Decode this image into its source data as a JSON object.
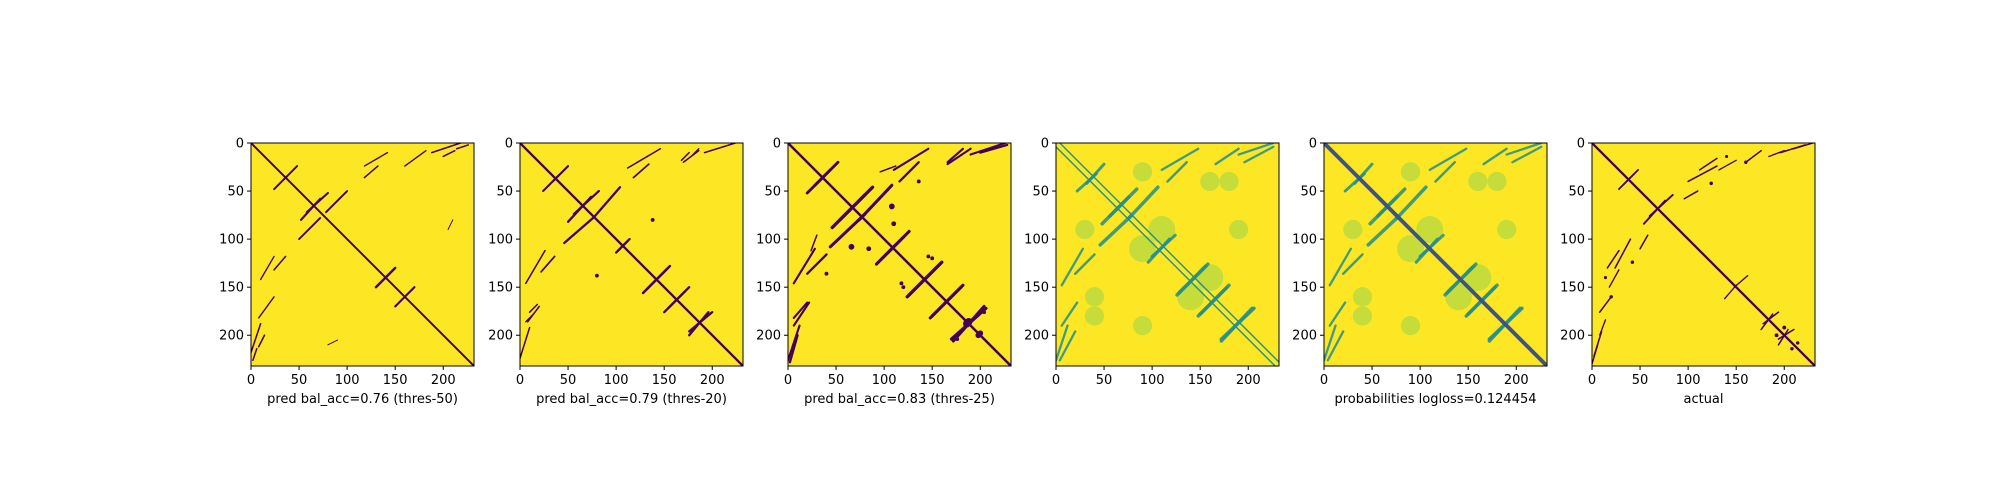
{
  "figure": {
    "background": "#ffffff",
    "colormap": [
      "#440154",
      "#3b528b",
      "#21908d",
      "#5dc963",
      "#fde725"
    ]
  },
  "chart_data": [
    {
      "type": "heatmap",
      "xlabel": "pred bal_acc=0.76 (thres-50)",
      "xticks": [
        0,
        50,
        100,
        150,
        200
      ],
      "yticks": [
        0,
        50,
        100,
        150,
        200
      ],
      "xlim": [
        0,
        232
      ],
      "ylim": [
        232,
        0
      ],
      "binary": true,
      "colors": [
        "#fde725",
        "#440154"
      ],
      "diagonal_width": 2,
      "contact_bands": [
        {
          "x": [
            24,
            38
          ],
          "y": [
            48,
            34
          ],
          "w": 2
        },
        {
          "x": [
            58,
            80
          ],
          "y": [
            72,
            52
          ],
          "w": 2.2
        },
        {
          "x": [
            50,
            72
          ],
          "y": [
            100,
            78
          ],
          "w": 2
        },
        {
          "x": [
            24,
            36
          ],
          "y": [
            132,
            118
          ],
          "w": 1.6
        },
        {
          "x": [
            118,
            142
          ],
          "y": [
            24,
            10
          ],
          "w": 1.4
        },
        {
          "x": [
            160,
            182
          ],
          "y": [
            24,
            8
          ],
          "w": 1.4
        },
        {
          "x": [
            188,
            218
          ],
          "y": [
            10,
            0
          ],
          "w": 1.6
        },
        {
          "x": [
            130,
            150
          ],
          "y": [
            150,
            130
          ],
          "w": 2.4
        },
        {
          "x": [
            150,
            170
          ],
          "y": [
            170,
            150
          ],
          "w": 2
        },
        {
          "x": [
            8,
            14
          ],
          "y": [
            212,
            200
          ],
          "w": 1.6
        },
        {
          "x": [
            2,
            6
          ],
          "y": [
            226,
            214
          ],
          "w": 1.6
        },
        {
          "x": [
            80,
            90
          ],
          "y": [
            210,
            205
          ],
          "w": 1
        }
      ],
      "blobs": []
    },
    {
      "type": "heatmap",
      "xlabel": "pred bal_acc=0.79 (thres-20)",
      "xticks": [
        0,
        50,
        100,
        150,
        200
      ],
      "yticks": [
        0,
        50,
        100,
        150,
        200
      ],
      "xlim": [
        0,
        232
      ],
      "ylim": [
        232,
        0
      ],
      "binary": true,
      "colors": [
        "#fde725",
        "#440154"
      ],
      "diagonal_width": 2.4,
      "contact_bands": [
        {
          "x": [
            24,
            40
          ],
          "y": [
            50,
            34
          ],
          "w": 2.2
        },
        {
          "x": [
            56,
            82
          ],
          "y": [
            74,
            50
          ],
          "w": 2.4
        },
        {
          "x": [
            46,
            76
          ],
          "y": [
            104,
            78
          ],
          "w": 2.4
        },
        {
          "x": [
            22,
            36
          ],
          "y": [
            134,
            118
          ],
          "w": 1.8
        },
        {
          "x": [
            100,
            112
          ],
          "y": [
            114,
            102
          ],
          "w": 2.4
        },
        {
          "x": [
            112,
            146
          ],
          "y": [
            26,
            6
          ],
          "w": 1.6
        },
        {
          "x": [
            170,
            186
          ],
          "y": [
            20,
            8
          ],
          "w": 1.6
        },
        {
          "x": [
            192,
            224
          ],
          "y": [
            10,
            0
          ],
          "w": 1.6
        },
        {
          "x": [
            132,
            156
          ],
          "y": [
            152,
            128
          ],
          "w": 2.6
        },
        {
          "x": [
            154,
            176
          ],
          "y": [
            172,
            150
          ],
          "w": 2.4
        },
        {
          "x": [
            176,
            200
          ],
          "y": [
            196,
            176
          ],
          "w": 2.4
        },
        {
          "x": [
            10,
            18
          ],
          "y": [
            176,
            168
          ],
          "w": 1.6
        },
        {
          "x": [
            6,
            14
          ],
          "y": [
            186,
            178
          ],
          "w": 1.4
        }
      ],
      "blobs": [
        {
          "cx": 80,
          "cy": 138,
          "r": 2
        }
      ]
    },
    {
      "type": "heatmap",
      "xlabel": "pred bal_acc=0.83 (thres-25)",
      "xticks": [
        0,
        50,
        100,
        150,
        200
      ],
      "yticks": [
        0,
        50,
        100,
        150,
        200
      ],
      "xlim": [
        0,
        232
      ],
      "ylim": [
        232,
        0
      ],
      "binary": true,
      "colors": [
        "#fde725",
        "#440154"
      ],
      "diagonal_width": 2.6,
      "contact_bands": [
        {
          "x": [
            20,
            44
          ],
          "y": [
            52,
            28
          ],
          "w": 3
        },
        {
          "x": [
            54,
            88
          ],
          "y": [
            80,
            46
          ],
          "w": 3.4
        },
        {
          "x": [
            44,
            80
          ],
          "y": [
            108,
            74
          ],
          "w": 3.2
        },
        {
          "x": [
            20,
            40
          ],
          "y": [
            136,
            116
          ],
          "w": 2.4
        },
        {
          "x": [
            92,
            120
          ],
          "y": [
            126,
            98
          ],
          "w": 3.2
        },
        {
          "x": [
            110,
            146
          ],
          "y": [
            28,
            6
          ],
          "w": 2.2
        },
        {
          "x": [
            166,
            190
          ],
          "y": [
            22,
            6
          ],
          "w": 2.2
        },
        {
          "x": [
            190,
            226
          ],
          "y": [
            12,
            0
          ],
          "w": 2.2
        },
        {
          "x": [
            126,
            160
          ],
          "y": [
            158,
            124
          ],
          "w": 3.4
        },
        {
          "x": [
            150,
            182
          ],
          "y": [
            180,
            148
          ],
          "w": 3.2
        },
        {
          "x": [
            170,
            206
          ],
          "y": [
            204,
            172
          ],
          "w": 3.2
        },
        {
          "x": [
            6,
            20
          ],
          "y": [
            182,
            166
          ],
          "w": 2.2
        },
        {
          "x": [
            2,
            10
          ],
          "y": [
            228,
            200
          ],
          "w": 2.4
        },
        {
          "x": [
            96,
            112
          ],
          "y": [
            30,
            24
          ],
          "w": 1.6
        }
      ],
      "blobs": [
        {
          "cx": 66,
          "cy": 108,
          "r": 3
        },
        {
          "cx": 110,
          "cy": 84,
          "r": 2.5
        },
        {
          "cx": 146,
          "cy": 118,
          "r": 2
        },
        {
          "cx": 188,
          "cy": 186,
          "r": 4
        },
        {
          "cx": 200,
          "cy": 198,
          "r": 3
        },
        {
          "cx": 176,
          "cy": 204,
          "r": 2
        },
        {
          "cx": 40,
          "cy": 136,
          "r": 2
        },
        {
          "cx": 120,
          "cy": 150,
          "r": 2
        }
      ]
    },
    {
      "type": "heatmap",
      "xlabel": "",
      "xticks": [
        0,
        50,
        100,
        150,
        200
      ],
      "yticks": [
        0,
        50,
        100,
        150,
        200
      ],
      "xlim": [
        0,
        232
      ],
      "ylim": [
        232,
        0
      ],
      "binary": false,
      "colors": [
        "#fde725",
        "#21908d"
      ],
      "diagonal_width": 0,
      "diagonal_double": true,
      "contact_bands": [
        {
          "x": [
            22,
            42
          ],
          "y": [
            50,
            32
          ],
          "w": 3
        },
        {
          "x": [
            56,
            84
          ],
          "y": [
            76,
            48
          ],
          "w": 3.6
        },
        {
          "x": [
            46,
            78
          ],
          "y": [
            106,
            76
          ],
          "w": 3.6
        },
        {
          "x": [
            20,
            40
          ],
          "y": [
            136,
            116
          ],
          "w": 2.6
        },
        {
          "x": [
            96,
            118
          ],
          "y": [
            124,
            100
          ],
          "w": 3.2
        },
        {
          "x": [
            110,
            148
          ],
          "y": [
            28,
            6
          ],
          "w": 2.4
        },
        {
          "x": [
            166,
            190
          ],
          "y": [
            22,
            6
          ],
          "w": 2.4
        },
        {
          "x": [
            190,
            226
          ],
          "y": [
            12,
            0
          ],
          "w": 2.4
        },
        {
          "x": [
            128,
            158
          ],
          "y": [
            156,
            126
          ],
          "w": 3.6
        },
        {
          "x": [
            150,
            180
          ],
          "y": [
            178,
            148
          ],
          "w": 3.6
        },
        {
          "x": [
            172,
            206
          ],
          "y": [
            204,
            172
          ],
          "w": 3.6
        },
        {
          "x": [
            4,
            20
          ],
          "y": [
            226,
            196
          ],
          "w": 2.4
        }
      ],
      "blobs": [
        {
          "cx": 90,
          "cy": 110,
          "r": 14
        },
        {
          "cx": 140,
          "cy": 160,
          "r": 14
        },
        {
          "cx": 40,
          "cy": 160,
          "r": 10
        },
        {
          "cx": 190,
          "cy": 90,
          "r": 10
        },
        {
          "cx": 30,
          "cy": 90,
          "r": 10
        },
        {
          "cx": 180,
          "cy": 40,
          "r": 10
        }
      ]
    },
    {
      "type": "heatmap",
      "xlabel": "probabilities logloss=0.124454",
      "xticks": [
        0,
        50,
        100,
        150,
        200
      ],
      "yticks": [
        0,
        50,
        100,
        150,
        200
      ],
      "xlim": [
        0,
        232
      ],
      "ylim": [
        232,
        0
      ],
      "binary": false,
      "colors": [
        "#fde725",
        "#21908d"
      ],
      "diagonal_width": 4,
      "diagonal_color": "#3b528b",
      "contact_bands": [
        {
          "x": [
            22,
            42
          ],
          "y": [
            50,
            32
          ],
          "w": 3
        },
        {
          "x": [
            56,
            84
          ],
          "y": [
            76,
            48
          ],
          "w": 3.6
        },
        {
          "x": [
            46,
            78
          ],
          "y": [
            106,
            76
          ],
          "w": 3.6
        },
        {
          "x": [
            20,
            40
          ],
          "y": [
            136,
            116
          ],
          "w": 2.6
        },
        {
          "x": [
            96,
            118
          ],
          "y": [
            124,
            100
          ],
          "w": 3.2
        },
        {
          "x": [
            110,
            148
          ],
          "y": [
            28,
            6
          ],
          "w": 2.4
        },
        {
          "x": [
            166,
            190
          ],
          "y": [
            22,
            6
          ],
          "w": 2.4
        },
        {
          "x": [
            190,
            226
          ],
          "y": [
            12,
            0
          ],
          "w": 2.4
        },
        {
          "x": [
            128,
            158
          ],
          "y": [
            156,
            126
          ],
          "w": 3.6
        },
        {
          "x": [
            150,
            180
          ],
          "y": [
            178,
            148
          ],
          "w": 3.6
        },
        {
          "x": [
            172,
            206
          ],
          "y": [
            204,
            172
          ],
          "w": 3.6
        },
        {
          "x": [
            4,
            20
          ],
          "y": [
            226,
            196
          ],
          "w": 2.4
        }
      ],
      "blobs": [
        {
          "cx": 90,
          "cy": 110,
          "r": 14
        },
        {
          "cx": 140,
          "cy": 160,
          "r": 14
        },
        {
          "cx": 40,
          "cy": 160,
          "r": 10
        },
        {
          "cx": 190,
          "cy": 90,
          "r": 10
        },
        {
          "cx": 30,
          "cy": 90,
          "r": 10
        },
        {
          "cx": 180,
          "cy": 40,
          "r": 10
        }
      ]
    },
    {
      "type": "heatmap",
      "xlabel": "actual",
      "xticks": [
        0,
        50,
        100,
        150,
        200
      ],
      "yticks": [
        0,
        50,
        100,
        150,
        200
      ],
      "xlim": [
        0,
        232
      ],
      "ylim": [
        232,
        0
      ],
      "binary": true,
      "colors": [
        "#fde725",
        "#440154"
      ],
      "diagonal_width": 2.4,
      "contact_bands": [
        {
          "x": [
            28,
            44
          ],
          "y": [
            48,
            32
          ],
          "w": 1.8
        },
        {
          "x": [
            60,
            84
          ],
          "y": [
            76,
            54
          ],
          "w": 2
        },
        {
          "x": [
            16,
            28
          ],
          "y": [
            130,
            112
          ],
          "w": 1.6
        },
        {
          "x": [
            8,
            20
          ],
          "y": [
            176,
            160
          ],
          "w": 1.6
        },
        {
          "x": [
            2,
            10
          ],
          "y": [
            222,
            196
          ],
          "w": 1.6
        },
        {
          "x": [
            100,
            130
          ],
          "y": [
            40,
            24
          ],
          "w": 1.6
        },
        {
          "x": [
            132,
            150
          ],
          "y": [
            28,
            18
          ],
          "w": 1.4
        },
        {
          "x": [
            184,
            200
          ],
          "y": [
            14,
            8
          ],
          "w": 1.4
        },
        {
          "x": [
            210,
            230
          ],
          "y": [
            6,
            0
          ],
          "w": 1.4
        },
        {
          "x": [
            96,
            110
          ],
          "y": [
            58,
            50
          ],
          "w": 1.6
        },
        {
          "x": [
            148,
            162
          ],
          "y": [
            150,
            138
          ],
          "w": 1.4
        },
        {
          "x": [
            178,
            194
          ],
          "y": [
            188,
            176
          ],
          "w": 1.6
        },
        {
          "x": [
            194,
            210
          ],
          "y": [
            204,
            194
          ],
          "w": 1.6
        }
      ],
      "blobs": [
        {
          "cx": 124,
          "cy": 42,
          "r": 1.8
        },
        {
          "cx": 160,
          "cy": 20,
          "r": 1.8
        },
        {
          "cx": 200,
          "cy": 192,
          "r": 2
        },
        {
          "cx": 214,
          "cy": 208,
          "r": 1.8
        },
        {
          "cx": 140,
          "cy": 14,
          "r": 1.6
        }
      ]
    }
  ]
}
